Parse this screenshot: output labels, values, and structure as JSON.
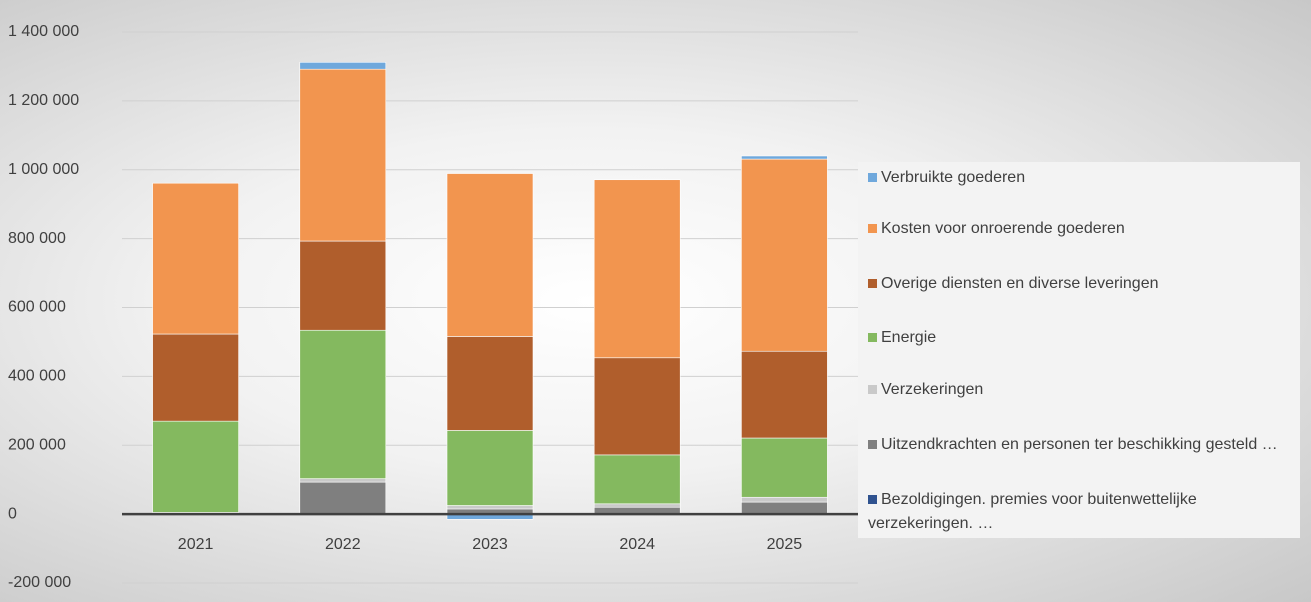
{
  "chart_data": {
    "type": "stacked_bar",
    "categories": [
      "2021",
      "2022",
      "2023",
      "2024",
      "2025"
    ],
    "series": [
      {
        "name": "Bezoldigingen. premies voor buitenwettelijke verzekeringen. …",
        "color": "#2f528f",
        "values": [
          0,
          0,
          0,
          0,
          0
        ]
      },
      {
        "name": "Uitzendkrachten en personen ter beschikking gesteld …",
        "color": "#7f7f7f",
        "values": [
          0,
          93000,
          15000,
          20000,
          35000
        ]
      },
      {
        "name": "Verzekeringen",
        "color": "#c9c9c9",
        "values": [
          5000,
          10000,
          10000,
          10000,
          14000
        ]
      },
      {
        "name": "Energie",
        "color": "#84b95f",
        "values": [
          265000,
          431000,
          218000,
          142000,
          172000
        ]
      },
      {
        "name": "Overige diensten en diverse leveringen",
        "color": "#b05e2c",
        "values": [
          253000,
          259000,
          273000,
          282000,
          252000
        ]
      },
      {
        "name": "Kosten voor onroerende goederen",
        "color": "#f2954f",
        "values": [
          438000,
          499000,
          473000,
          517000,
          558000
        ]
      },
      {
        "name": "Verbruikte goederen",
        "color": "#6fa8dc",
        "values": [
          0,
          20000,
          -15000,
          0,
          9000
        ]
      }
    ],
    "ylim": [
      -200000,
      1400000
    ],
    "yticks": [
      {
        "value": -200000,
        "label": "-200 000"
      },
      0,
      {
        "value": 200000,
        "label": "200 000"
      },
      {
        "value": 400000,
        "label": "400 000"
      },
      {
        "value": 600000,
        "label": "600 000"
      },
      {
        "value": 800000,
        "label": "800 000"
      },
      {
        "value": 1000000,
        "label": "1 000 000"
      },
      {
        "value": 1200000,
        "label": "1 200 000"
      },
      {
        "value": 1400000,
        "label": "1 400 000"
      }
    ],
    "grid": true,
    "legend": "right"
  }
}
